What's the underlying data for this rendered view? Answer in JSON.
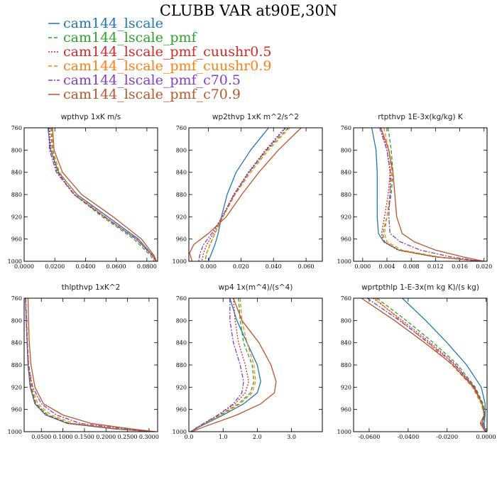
{
  "figure_title": "CLUBB VAR at90E,30N",
  "legend": [
    {
      "name": "cam144_lscale",
      "color": "#1f77b4",
      "dash": "solid"
    },
    {
      "name": "cam144_lscale_pmf",
      "color": "#2ca02c",
      "dash": "dash"
    },
    {
      "name": "cam144_lscale_pmf_cuushr0.5",
      "color": "#d62728",
      "dash": "dot"
    },
    {
      "name": "cam144_lscale_pmf_cuushr0.9",
      "color": "#ff7f0e",
      "dash": "dash"
    },
    {
      "name": "cam144_lscale_pmf_c70.5",
      "color": "#7f3fbf",
      "dash": "dashdot"
    },
    {
      "name": "cam144_lscale_pmf_c70.9",
      "color": "#b5562b",
      "dash": "solid"
    }
  ],
  "chart_data": [
    {
      "type": "line",
      "title": "wpthvp  1xK m/s",
      "xlim": [
        0,
        0.087
      ],
      "ylim": [
        760,
        1000
      ],
      "y_inverted": true,
      "xticks": [
        "0.0000",
        "0.0200",
        "0.0400",
        "0.0600",
        "0.0800"
      ],
      "xtick_values": [
        0,
        0.02,
        0.04,
        0.06,
        0.08
      ],
      "yticks": [
        760,
        800,
        840,
        880,
        920,
        960,
        1000
      ],
      "y": [
        760,
        800,
        840,
        880,
        920,
        960,
        990,
        1000
      ],
      "series": [
        {
          "name": "cam144_lscale",
          "x": [
            0.0155,
            0.0172,
            0.0225,
            0.0345,
            0.0545,
            0.0745,
            0.084,
            0.086
          ]
        },
        {
          "name": "cam144_lscale_pmf",
          "x": [
            0.0175,
            0.0183,
            0.022,
            0.0325,
            0.051,
            0.0715,
            0.0825,
            0.0845
          ]
        },
        {
          "name": "cam144_lscale_pmf_cuushr0.5",
          "x": [
            0.0165,
            0.0175,
            0.0215,
            0.033,
            0.0525,
            0.073,
            0.0835,
            0.0855
          ]
        },
        {
          "name": "cam144_lscale_pmf_cuushr0.9",
          "x": [
            0.018,
            0.0188,
            0.023,
            0.034,
            0.053,
            0.0735,
            0.084,
            0.0858
          ]
        },
        {
          "name": "cam144_lscale_pmf_c70.5",
          "x": [
            0.016,
            0.0165,
            0.021,
            0.0325,
            0.052,
            0.073,
            0.0838,
            0.0858
          ]
        },
        {
          "name": "cam144_lscale_pmf_c70.9",
          "x": [
            0.0185,
            0.0195,
            0.025,
            0.0375,
            0.058,
            0.0765,
            0.0848,
            0.0862
          ]
        }
      ]
    },
    {
      "type": "line",
      "title": "wp2thvp  1xK m^2/s^2",
      "xlim": [
        -0.012,
        0.07
      ],
      "ylim": [
        760,
        1000
      ],
      "y_inverted": true,
      "xticks": [
        "0.000",
        "0.020",
        "0.040",
        "0.060"
      ],
      "xtick_values": [
        0,
        0.02,
        0.04,
        0.06
      ],
      "yticks": [
        760,
        800,
        840,
        880,
        920,
        960,
        1000
      ],
      "y": [
        760,
        800,
        840,
        880,
        920,
        950,
        970,
        985,
        1000
      ],
      "series": [
        {
          "name": "cam144_lscale",
          "x": [
            0.037,
            0.026,
            0.017,
            0.0115,
            0.008,
            0.006,
            0.004,
            0.002,
            0.0
          ]
        },
        {
          "name": "cam144_lscale_pmf",
          "x": [
            0.049,
            0.036,
            0.025,
            0.016,
            0.009,
            0.004,
            0.001,
            -0.001,
            -0.002
          ]
        },
        {
          "name": "cam144_lscale_pmf_cuushr0.5",
          "x": [
            0.047,
            0.035,
            0.0245,
            0.0155,
            0.0085,
            0.003,
            -0.001,
            -0.003,
            -0.004
          ]
        },
        {
          "name": "cam144_lscale_pmf_cuushr0.9",
          "x": [
            0.05,
            0.037,
            0.026,
            0.0165,
            0.009,
            0.004,
            0.001,
            -0.001,
            -0.002
          ]
        },
        {
          "name": "cam144_lscale_pmf_c70.5",
          "x": [
            0.0475,
            0.0355,
            0.0248,
            0.0158,
            0.0085,
            0.002,
            -0.003,
            -0.005,
            -0.006
          ]
        },
        {
          "name": "cam144_lscale_pmf_c70.9",
          "x": [
            0.057,
            0.043,
            0.031,
            0.0205,
            0.011,
            0.0,
            -0.009,
            -0.0115,
            -0.01
          ]
        }
      ]
    },
    {
      "type": "line",
      "title": "rtpthvp  1E-3x(kg/kg) K",
      "xlim": [
        -0.0015,
        0.0205
      ],
      "ylim": [
        760,
        1000
      ],
      "y_inverted": true,
      "xticks": [
        "0.000",
        "0.004",
        "0.008",
        "0.012",
        "0.016",
        "0.020"
      ],
      "xtick_values": [
        0,
        0.004,
        0.008,
        0.012,
        0.016,
        0.02
      ],
      "yticks": [
        760,
        800,
        840,
        880,
        920,
        960,
        1000
      ],
      "y": [
        760,
        800,
        840,
        880,
        920,
        950,
        965,
        980,
        992,
        1000
      ],
      "series": [
        {
          "name": "cam144_lscale",
          "x": [
            0.0015,
            0.0022,
            0.0024,
            0.0024,
            0.0024,
            0.0026,
            0.0035,
            0.006,
            0.012,
            0.0195
          ]
        },
        {
          "name": "cam144_lscale_pmf",
          "x": [
            0.0042,
            0.0047,
            0.005,
            0.0047,
            0.004,
            0.0033,
            0.0036,
            0.006,
            0.012,
            0.0195
          ]
        },
        {
          "name": "cam144_lscale_pmf_cuushr0.5",
          "x": [
            0.003,
            0.004,
            0.0045,
            0.0042,
            0.0036,
            0.0031,
            0.0034,
            0.0058,
            0.0118,
            0.0195
          ]
        },
        {
          "name": "cam144_lscale_pmf_cuushr0.9",
          "x": [
            0.0035,
            0.0043,
            0.0048,
            0.0045,
            0.004,
            0.0036,
            0.004,
            0.0065,
            0.0125,
            0.0195
          ]
        },
        {
          "name": "cam144_lscale_pmf_c70.5",
          "x": [
            0.0028,
            0.004,
            0.0046,
            0.0045,
            0.0043,
            0.0045,
            0.0062,
            0.0095,
            0.0145,
            0.0195
          ]
        },
        {
          "name": "cam144_lscale_pmf_c70.9",
          "x": [
            0.003,
            0.0043,
            0.005,
            0.0053,
            0.0056,
            0.0065,
            0.0085,
            0.012,
            0.0165,
            0.02
          ]
        }
      ]
    },
    {
      "type": "line",
      "title": "thlpthvp  1xK^2",
      "xlim": [
        0.01,
        0.32
      ],
      "ylim": [
        760,
        1000
      ],
      "y_inverted": true,
      "xticks": [
        "0.0500",
        "0.1000",
        "0.1500",
        "0.2000",
        "0.2500",
        "0.3000"
      ],
      "xtick_values": [
        0.05,
        0.1,
        0.15,
        0.2,
        0.25,
        0.3
      ],
      "yticks": [
        760,
        800,
        840,
        880,
        920,
        960,
        1000
      ],
      "y": [
        760,
        800,
        840,
        880,
        920,
        950,
        970,
        985,
        995,
        1000
      ],
      "series": [
        {
          "name": "cam144_lscale",
          "x": [
            0.013,
            0.015,
            0.017,
            0.019,
            0.024,
            0.035,
            0.06,
            0.11,
            0.22,
            0.31
          ]
        },
        {
          "name": "cam144_lscale_pmf",
          "x": [
            0.014,
            0.016,
            0.018,
            0.02,
            0.026,
            0.038,
            0.065,
            0.115,
            0.225,
            0.31
          ]
        },
        {
          "name": "cam144_lscale_pmf_cuushr0.5",
          "x": [
            0.013,
            0.015,
            0.017,
            0.019,
            0.025,
            0.036,
            0.062,
            0.112,
            0.222,
            0.31
          ]
        },
        {
          "name": "cam144_lscale_pmf_cuushr0.9",
          "x": [
            0.014,
            0.016,
            0.018,
            0.021,
            0.028,
            0.042,
            0.072,
            0.125,
            0.232,
            0.31
          ]
        },
        {
          "name": "cam144_lscale_pmf_c70.5",
          "x": [
            0.013,
            0.015,
            0.017,
            0.02,
            0.03,
            0.05,
            0.085,
            0.14,
            0.245,
            0.31
          ]
        },
        {
          "name": "cam144_lscale_pmf_c70.9",
          "x": [
            0.019,
            0.02,
            0.022,
            0.026,
            0.035,
            0.055,
            0.1,
            0.165,
            0.26,
            0.315
          ]
        }
      ]
    },
    {
      "type": "line",
      "title": "wp4  1x(m^4)/(s^4)",
      "xlim": [
        0,
        3.9
      ],
      "ylim": [
        760,
        1000
      ],
      "y_inverted": true,
      "xticks": [
        "0.0",
        "1.0",
        "2.0",
        "3.0"
      ],
      "xtick_values": [
        0,
        1,
        2,
        3
      ],
      "yticks": [
        760,
        800,
        840,
        880,
        920,
        960,
        1000
      ],
      "y": [
        760,
        800,
        840,
        880,
        910,
        930,
        950,
        970,
        990,
        1000
      ],
      "series": [
        {
          "name": "cam144_lscale",
          "x": [
            1.2,
            1.4,
            1.7,
            2.0,
            2.1,
            2.0,
            1.6,
            1.0,
            0.35,
            0.05
          ]
        },
        {
          "name": "cam144_lscale_pmf",
          "x": [
            1.45,
            1.5,
            1.6,
            1.85,
            1.9,
            1.8,
            1.45,
            0.9,
            0.3,
            0.05
          ]
        },
        {
          "name": "cam144_lscale_pmf_cuushr0.5",
          "x": [
            1.3,
            1.35,
            1.45,
            1.65,
            1.75,
            1.65,
            1.35,
            0.85,
            0.3,
            0.05
          ]
        },
        {
          "name": "cam144_lscale_pmf_cuushr0.9",
          "x": [
            1.5,
            1.55,
            1.7,
            1.9,
            1.95,
            1.85,
            1.5,
            0.95,
            0.32,
            0.05
          ]
        },
        {
          "name": "cam144_lscale_pmf_c70.5",
          "x": [
            1.2,
            1.2,
            1.3,
            1.5,
            1.6,
            1.55,
            1.3,
            0.85,
            0.3,
            0.05
          ]
        },
        {
          "name": "cam144_lscale_pmf_c70.9",
          "x": [
            1.3,
            1.55,
            2.05,
            2.4,
            2.55,
            2.5,
            2.1,
            1.4,
            0.5,
            0.08
          ]
        }
      ]
    },
    {
      "type": "line",
      "title": "wprtpthlp  1-E-3x(m kg K)/(s kg)",
      "xlim": [
        -0.068,
        0.0005
      ],
      "ylim": [
        760,
        1000
      ],
      "y_inverted": true,
      "xticks": [
        "-0.0600",
        "-0.0400",
        "-0.0200",
        "0.0000"
      ],
      "xtick_values": [
        -0.06,
        -0.04,
        -0.02,
        0
      ],
      "yticks": [
        760,
        800,
        840,
        880,
        920,
        960,
        1000
      ],
      "y": [
        760,
        800,
        840,
        880,
        920,
        950,
        970,
        985,
        1000
      ],
      "series": [
        {
          "name": "cam144_lscale",
          "x": [
            -0.043,
            -0.031,
            -0.02,
            -0.01,
            -0.0025,
            -0.0005,
            -0.0005,
            -0.001,
            -0.0005
          ]
        },
        {
          "name": "cam144_lscale_pmf",
          "x": [
            -0.056,
            -0.041,
            -0.027,
            -0.0145,
            -0.0055,
            -0.0015,
            -0.0005,
            -0.0015,
            -0.0005
          ]
        },
        {
          "name": "cam144_lscale_pmf_cuushr0.5",
          "x": [
            -0.058,
            -0.043,
            -0.0285,
            -0.0155,
            -0.006,
            -0.002,
            -0.0008,
            -0.002,
            -0.0005
          ]
        },
        {
          "name": "cam144_lscale_pmf_cuushr0.9",
          "x": [
            -0.057,
            -0.044,
            -0.03,
            -0.0175,
            -0.007,
            -0.0025,
            -0.001,
            -0.0025,
            -0.0005
          ]
        },
        {
          "name": "cam144_lscale_pmf_c70.5",
          "x": [
            -0.061,
            -0.0445,
            -0.0295,
            -0.016,
            -0.006,
            -0.002,
            -0.0008,
            -0.002,
            -0.0005
          ]
        },
        {
          "name": "cam144_lscale_pmf_c70.9",
          "x": [
            -0.064,
            -0.047,
            -0.0315,
            -0.017,
            -0.0065,
            -0.002,
            -0.001,
            -0.003,
            -0.0005
          ]
        }
      ]
    }
  ]
}
